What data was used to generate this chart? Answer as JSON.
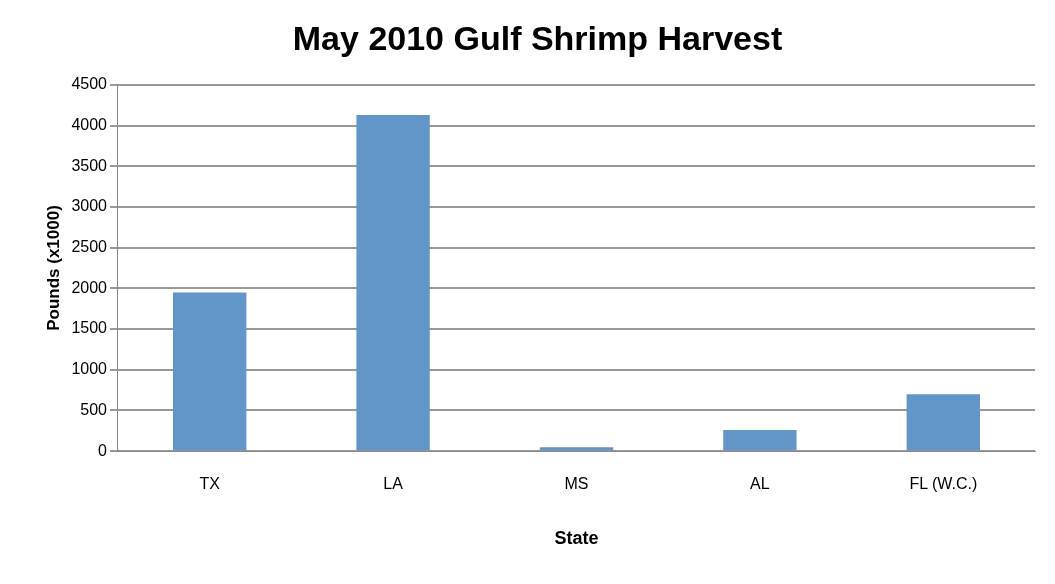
{
  "chart_data": {
    "type": "bar",
    "title": "May 2010 Gulf Shrimp Harvest",
    "xlabel": "State",
    "ylabel": "Pounds (x1000)",
    "categories": [
      "TX",
      "LA",
      "MS",
      "AL",
      "FL (W.C.)"
    ],
    "values": [
      1950,
      4130,
      50,
      260,
      700
    ],
    "color": "#6295c8",
    "ylim": [
      0,
      4500
    ],
    "yticks": [
      0,
      500,
      1000,
      1500,
      2000,
      2500,
      3000,
      3500,
      4000,
      4500
    ],
    "grid": "y",
    "legend": false
  }
}
